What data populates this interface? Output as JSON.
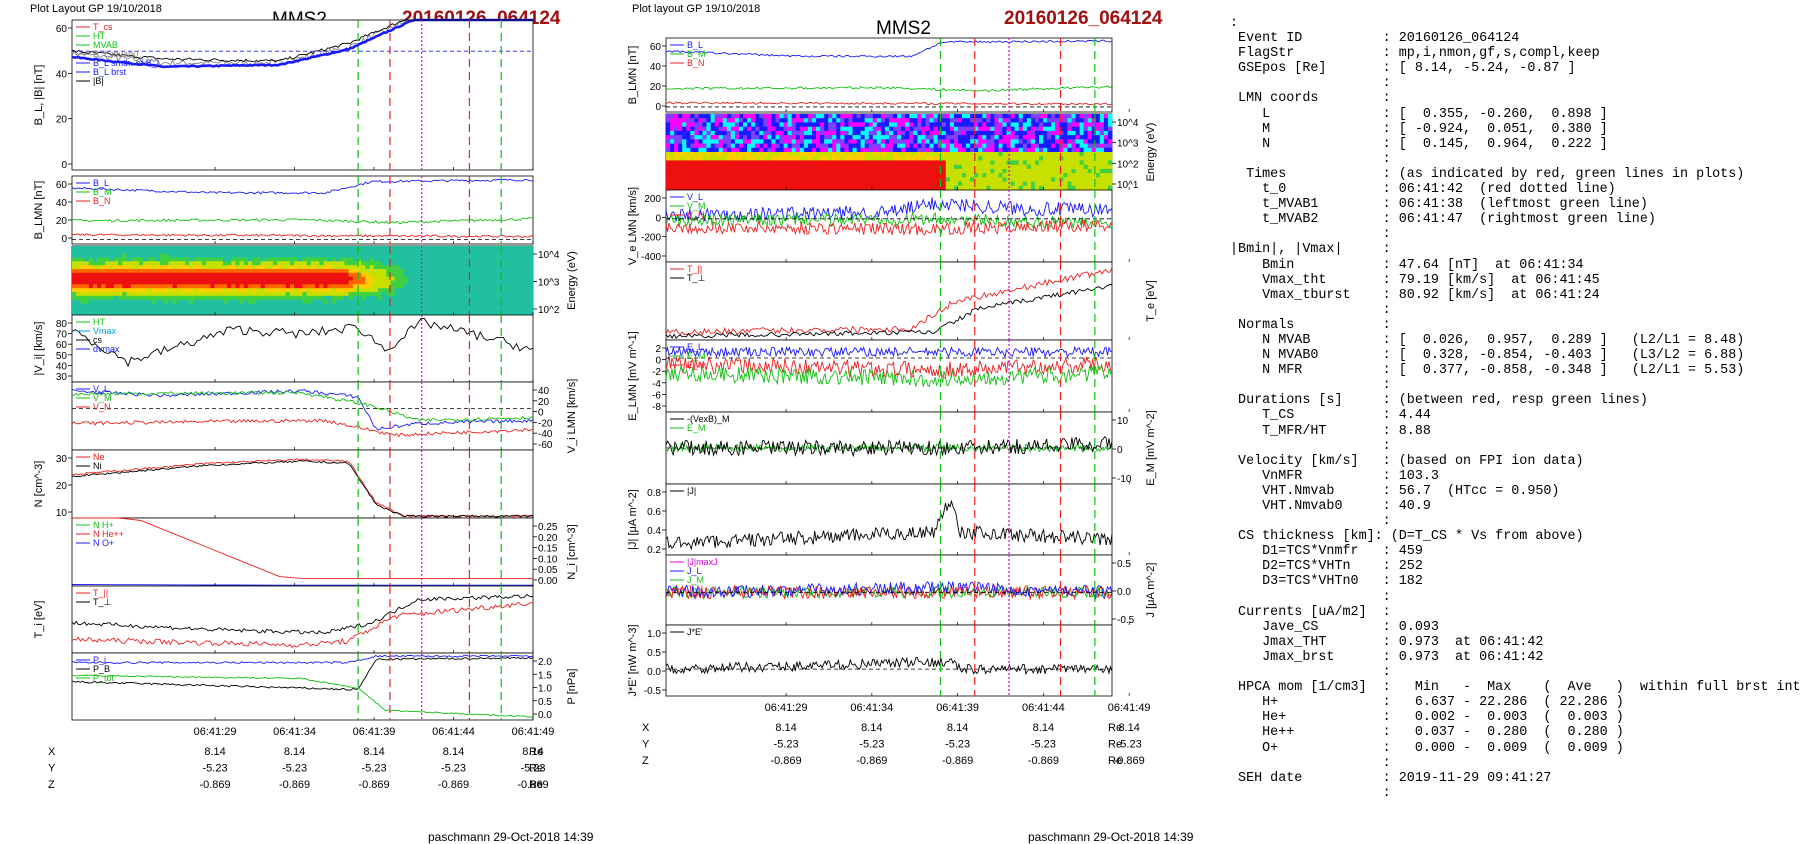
{
  "header": {
    "plot_layout": "Plot Layout GP 19/10/2018",
    "plot_layout_mid": "Plot layout GP 19/10/2018",
    "spacecraft": "MMS2",
    "event": "20160126_064124",
    "footer": "paschmann 29-Oct-2018 14:39"
  },
  "colors": {
    "red": "#ee2020",
    "green": "#10c010",
    "blue": "#1a1aff",
    "magenta": "#dd00dd",
    "black": "#000000",
    "gray": "#888888",
    "event": "#a01010"
  },
  "chart_data": [
    {
      "id": "left",
      "type": "line",
      "time_ticks": [
        "06:41:29",
        "06:41:34",
        "06:41:39",
        "06:41:44",
        "06:41:49"
      ],
      "markers": {
        "green": [
          "06:41:38",
          "06:41:47"
        ],
        "red": [
          "06:41:40",
          "06:41:45"
        ],
        "magenta": [
          "06:41:42"
        ]
      },
      "ephemeris": {
        "rows": [
          {
            "label": "X",
            "values": [
              "8.14",
              "8.14",
              "8.14",
              "8.14",
              "8.14"
            ],
            "unit": "Re"
          },
          {
            "label": "Y",
            "values": [
              "-5.23",
              "-5.23",
              "-5.23",
              "-5.23",
              "-5.23"
            ],
            "unit": "Re"
          },
          {
            "label": "Z",
            "values": [
              "-0.869",
              "-0.869",
              "-0.869",
              "-0.869",
              "-0.869"
            ],
            "unit": "Re"
          }
        ]
      },
      "panels": [
        {
          "key": "bl",
          "ylabel": "B_L, |B| [nT]",
          "ticks": [
            "60",
            "40",
            "20",
            "0"
          ],
          "ylim": [
            -5,
            72
          ],
          "legend": [
            {
              "text": "T_cs",
              "color": "#ee2020"
            },
            {
              "text": "HT",
              "color": "#10c010"
            },
            {
              "text": "MVAB",
              "color": "#10c010"
            },
            {
              "text": "B_L mvab0",
              "color": "#888888"
            },
            {
              "text": "B_L smth. of B_L",
              "color": "#1a1aff"
            },
            {
              "text": "B_L brst",
              "color": "#1a1aff"
            },
            {
              "text": "|B|",
              "color": "#000000"
            }
          ]
        },
        {
          "key": "blmn",
          "ylabel": "B_LMN [nT]",
          "ticks": [
            "60",
            "40",
            "20",
            "0"
          ],
          "ylim": [
            -5,
            68
          ],
          "legend": [
            {
              "text": "B_L",
              "color": "#1a1aff"
            },
            {
              "text": "B_M",
              "color": "#10c010"
            },
            {
              "text": "B_N",
              "color": "#ee2020"
            }
          ]
        },
        {
          "key": "spec",
          "ylabel_right": "Energy (eV)",
          "ticks": [
            "10^4",
            "10^3",
            "10^2"
          ]
        },
        {
          "key": "vi",
          "ylabel": "|V_i| [km/s]",
          "ticks": [
            "80",
            "70",
            "60",
            "50",
            "40",
            "30"
          ],
          "ylim": [
            28,
            84
          ],
          "legend": [
            {
              "text": "HT",
              "color": "#10c010"
            },
            {
              "text": "Vmax",
              "color": "#0099dd"
            },
            {
              "text": "cs",
              "color": "#000000"
            },
            {
              "text": "dvmax",
              "color": "#1a1aff"
            }
          ]
        },
        {
          "key": "vilmn",
          "ylabel_right": "V_i LMN [km/s]",
          "ticks": [
            "40",
            "20",
            "0",
            "-20",
            "-40",
            "-60"
          ],
          "ylim": [
            -70,
            45
          ],
          "legend": [
            {
              "text": "V_L",
              "color": "#1a1aff"
            },
            {
              "text": "V_M",
              "color": "#10c010"
            },
            {
              "text": "V_N",
              "color": "#ee2020"
            }
          ]
        },
        {
          "key": "n",
          "ylabel": "N [cm^-3]",
          "ticks": [
            "30",
            "20",
            "10"
          ],
          "ylim": [
            0,
            36
          ],
          "legend": [
            {
              "text": "Ne",
              "color": "#ee2020"
            },
            {
              "text": "Ni",
              "color": "#000000"
            }
          ]
        },
        {
          "key": "nh",
          "ylabel_right": "N_i [cm^-3]",
          "ticks": [
            "0.25",
            "0.20",
            "0.15",
            "0.10",
            "0.05",
            "0.00"
          ],
          "ylim": [
            0,
            0.27
          ],
          "legend": [
            {
              "text": "N  H+",
              "color": "#10c010"
            },
            {
              "text": "N  He++",
              "color": "#ee2020"
            },
            {
              "text": "N  O+",
              "color": "#1a1aff"
            }
          ]
        },
        {
          "key": "ti",
          "ylabel": "T_i [eV]",
          "legend": [
            {
              "text": "T_||",
              "color": "#ee2020"
            },
            {
              "text": "T_⊥",
              "color": "#000000"
            }
          ]
        },
        {
          "key": "p",
          "ylabel_right": "P [nPa]",
          "ticks": [
            "2.0",
            "1.5",
            "1.0",
            "0.5",
            "0.0"
          ],
          "ylim": [
            0,
            2.1
          ],
          "legend": [
            {
              "text": "P_i",
              "color": "#1a1aff"
            },
            {
              "text": "P_B",
              "color": "#000000"
            },
            {
              "text": "P_tot",
              "color": "#10c010"
            }
          ]
        }
      ]
    },
    {
      "id": "mid",
      "type": "line",
      "time_ticks": [
        "06:41:29",
        "06:41:34",
        "06:41:39",
        "06:41:44",
        "06:41:49"
      ],
      "markers": {
        "green": [
          "06:41:38",
          "06:41:47"
        ],
        "red": [
          "06:41:40",
          "06:41:45"
        ],
        "magenta": [
          "06:41:42"
        ]
      },
      "ephemeris": {
        "rows": [
          {
            "label": "X",
            "values": [
              "8.14",
              "8.14",
              "8.14",
              "8.14",
              "8.14"
            ],
            "unit": "Re"
          },
          {
            "label": "Y",
            "values": [
              "-5.23",
              "-5.23",
              "-5.23",
              "-5.23",
              "-5.23"
            ],
            "unit": "Re"
          },
          {
            "label": "Z",
            "values": [
              "-0.869",
              "-0.869",
              "-0.869",
              "-0.869",
              "-0.869"
            ],
            "unit": "Re"
          }
        ]
      },
      "panels": [
        {
          "key": "blmn",
          "ylabel": "B_LMN [nT]",
          "ticks": [
            "60",
            "40",
            "20",
            "0"
          ],
          "ylim": [
            -5,
            68
          ],
          "legend": [
            {
              "text": "B_L",
              "color": "#1a1aff"
            },
            {
              "text": "B_M",
              "color": "#10c010"
            },
            {
              "text": "B_N",
              "color": "#ee2020"
            }
          ]
        },
        {
          "key": "espec",
          "ylabel_right": "Energy (eV)",
          "ticks": [
            "10^4",
            "10^3",
            "10^2",
            "10^1"
          ]
        },
        {
          "key": "ve",
          "ylabel": "V_e LMN [km/s]",
          "ticks": [
            "200",
            "0",
            "-200",
            "-400"
          ],
          "ylim": [
            -420,
            280
          ],
          "legend": [
            {
              "text": "V_L",
              "color": "#1a1aff"
            },
            {
              "text": "V_M",
              "color": "#10c010"
            },
            {
              "text": "V_N",
              "color": "#ee2020"
            }
          ]
        },
        {
          "key": "te",
          "ylabel_right": "T_e [eV]",
          "legend": [
            {
              "text": "T_||",
              "color": "#ee2020"
            },
            {
              "text": "T_⊥",
              "color": "#000000"
            }
          ]
        },
        {
          "key": "elmn",
          "ylabel": "E_LMN [mV m^-1]",
          "ticks": [
            "2",
            "0",
            "-2",
            "-4",
            "-6",
            "-8"
          ],
          "ylim": [
            -9,
            3
          ],
          "legend": [
            {
              "text": "E_L",
              "color": "#1a1aff"
            },
            {
              "text": "E_M",
              "color": "#10c010"
            },
            {
              "text": "E_N",
              "color": "#ee2020"
            }
          ]
        },
        {
          "key": "em",
          "ylabel_right": "E_M [mV m^-2]",
          "ticks": [
            "10",
            "0",
            "-10"
          ],
          "ylim": [
            -15,
            15
          ],
          "legend": [
            {
              "text": "-(VexB)_M",
              "color": "#000000"
            },
            {
              "text": "E_M",
              "color": "#10c010"
            }
          ]
        },
        {
          "key": "j",
          "ylabel": "|J| [μA m^-2]",
          "ticks": [
            "0.8",
            "0.6",
            "0.4",
            "0.2"
          ],
          "ylim": [
            0,
            0.92
          ],
          "legend": [
            {
              "text": "|J|",
              "color": "#000000"
            }
          ]
        },
        {
          "key": "jlmn",
          "ylabel_right": "J [μA m^-2]",
          "ticks": [
            "0.5",
            "0.0",
            "-0.5"
          ],
          "ylim": [
            -0.7,
            0.8
          ],
          "legend": [
            {
              "text": "|J|maxJ",
              "color": "#dd00dd"
            },
            {
              "text": "J_L",
              "color": "#1a1aff"
            },
            {
              "text": "J_M",
              "color": "#10c010"
            },
            {
              "text": "J_N",
              "color": "#ee2020"
            }
          ]
        },
        {
          "key": "je",
          "ylabel": "J*E' [nW m^-3]",
          "ticks": [
            "1.0",
            "0.5",
            "0.0",
            "-0.5"
          ],
          "ylim": [
            -0.7,
            1.15
          ],
          "legend": [
            {
              "text": "J*E'",
              "color": "#000000"
            }
          ]
        }
      ]
    }
  ],
  "info": {
    "lines": [
      ":",
      " Event ID          : 20160126_064124",
      " FlagStr           : mp,i,nmon,gf,s,compl,keep",
      " GSEpos [Re]       : [ 8.14, -5.24, -0.87 ]",
      "                   :",
      " LMN coords        :",
      "    L              : [  0.355, -0.260,  0.898 ]",
      "    M              : [ -0.924,  0.051,  0.380 ]",
      "    N              : [  0.145,  0.964,  0.222 ]",
      "                   :",
      "  Times            : (as indicated by red, green lines in plots)",
      "    t_0            : 06:41:42  (red dotted line)",
      "    t_MVAB1        : 06:41:38  (leftmost green line)",
      "    t_MVAB2        : 06:41:47  (rightmost green line)",
      "                   :",
      "|Bmin|, |Vmax|     :",
      "    Bmin           : 47.64 [nT]  at 06:41:34",
      "    Vmax_tht       : 79.19 [km/s]  at 06:41:45",
      "    Vmax_tburst    : 80.92 [km/s]  at 06:41:24",
      "                   :",
      " Normals           :",
      "    N MVAB         : [  0.026,  0.957,  0.289 ]   (L2/L1 = 8.48)",
      "    N MVAB0        : [  0.328, -0.854, -0.403 ]   (L3/L2 = 6.88)",
      "    N MFR          : [  0.377, -0.858, -0.348 ]   (L2/L1 = 5.53)",
      "                   :",
      " Durations [s]     : (between red, resp green lines)",
      "    T_CS           : 4.44",
      "    T_MFR/HT       : 8.88",
      "                   :",
      " Velocity [km/s]   : (based on FPI ion data)",
      "    VnMFR          : 103.3",
      "    VHT.Nmvab      : 56.7  (HTcc = 0.950)",
      "    VHT.Nmvab0     : 40.9",
      "                   :",
      " CS thickness [km]: (D=T_CS * Vs from above)",
      "    D1=TCS*Vnmfr   : 459",
      "    D2=TCS*VHTn    : 252",
      "    D3=TCS*VHTn0   : 182",
      "                   :",
      " Currents [uA/m2]  :",
      "    Jave_CS        : 0.093",
      "    Jmax_THT       : 0.973  at 06:41:42",
      "    Jmax_brst      : 0.973  at 06:41:42",
      "                   :",
      " HPCA mom [1/cm3]  :   Min   -  Max    (  Ave   )  within full brst int",
      "    H+             :   6.637 - 22.286  ( 22.286 )",
      "    He+            :   0.002 -  0.003  (  0.003 )",
      "    He++           :   0.037 -  0.280  (  0.280 )",
      "    O+             :   0.000 -  0.009  (  0.009 )",
      "                   :",
      " SEH date          : 2019-11-29 09:41:27",
      "                   :"
    ]
  }
}
